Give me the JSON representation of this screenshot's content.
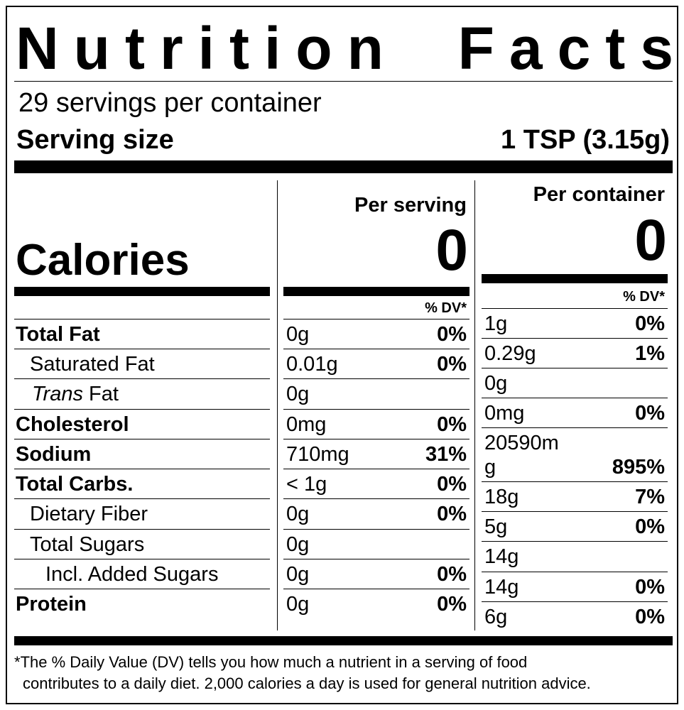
{
  "title": {
    "word1": "Nutrition",
    "word2": "Facts"
  },
  "servings_per_container": "29 servings per container",
  "serving_size": {
    "label": "Serving size",
    "value": "1 TSP (3.15g)"
  },
  "calories": {
    "label": "Calories",
    "per_serving_header": "Per serving",
    "per_serving_value": "0",
    "per_container_header": "Per container",
    "per_container_value": "0"
  },
  "dv_header": "% DV*",
  "nutrients": [
    {
      "label": "Total Fat",
      "serving_amount": "0g",
      "serving_dv": "0%"
    },
    {
      "label": "Saturated Fat",
      "serving_amount": "0.01g",
      "serving_dv": "0%"
    },
    {
      "label_italic": "Trans",
      "label_rest": " Fat",
      "serving_amount": "0g",
      "serving_dv": ""
    },
    {
      "label": "Cholesterol",
      "serving_amount": "0mg",
      "serving_dv": "0%"
    },
    {
      "label": "Sodium",
      "serving_amount": "710mg",
      "serving_dv": "31%"
    },
    {
      "label": "Total Carbs.",
      "serving_amount": "< 1g",
      "serving_dv": "0%"
    },
    {
      "label": "Dietary Fiber",
      "serving_amount": "0g",
      "serving_dv": "0%"
    },
    {
      "label": "Total Sugars",
      "serving_amount": "0g",
      "serving_dv": ""
    },
    {
      "label": "Incl. Added Sugars",
      "serving_amount": "0g",
      "serving_dv": "0%"
    },
    {
      "label": "Protein",
      "serving_amount": "0g",
      "serving_dv": "0%"
    }
  ],
  "container_values": [
    {
      "amount": "1g",
      "dv": "0%"
    },
    {
      "amount": "0.29g",
      "dv": "1%"
    },
    {
      "amount": "0g",
      "dv": ""
    },
    {
      "amount": "0mg",
      "dv": "0%"
    },
    {
      "amount_line1": "20590m",
      "amount_line2": "g",
      "dv": "895%"
    },
    {
      "amount": "18g",
      "dv": "7%"
    },
    {
      "amount": "5g",
      "dv": "0%"
    },
    {
      "amount": "14g",
      "dv": ""
    },
    {
      "amount": "14g",
      "dv": "0%"
    },
    {
      "amount": "6g",
      "dv": "0%"
    }
  ],
  "footnote": {
    "asterisk": "*",
    "line1": "The % Daily Value (DV) tells you how much a nutrient in a serving of food",
    "line2": "contributes to a daily diet. 2,000 calories a day is used for general nutrition advice."
  }
}
